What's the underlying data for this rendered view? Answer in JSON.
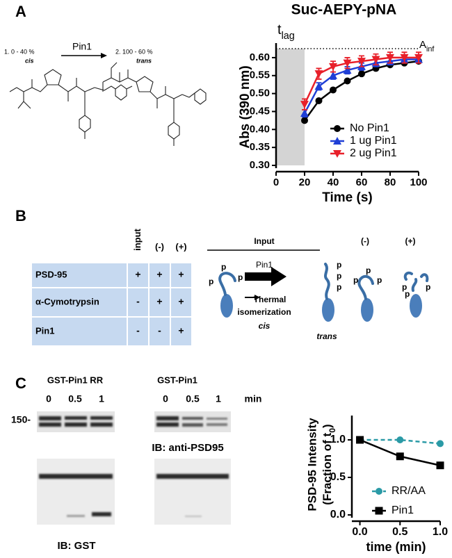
{
  "panel_labels": [
    "A",
    "B",
    "C"
  ],
  "scheme": {
    "start_label": "1.  0 - 40 %",
    "start_form": "cis",
    "enzyme": "Pin1",
    "end_label": "2.  100 - 60 %",
    "end_form": "trans"
  },
  "chart_data": [
    {
      "type": "line",
      "title": "Suc-AEPY-pNA",
      "x_label": "Time (s)",
      "y_label": "Abs (390 nm)",
      "lag_label": {
        "base": "t",
        "sub": "lag"
      },
      "asymptote_label": {
        "base": "A",
        "sub": "inf"
      },
      "lag_span": [
        0,
        20
      ],
      "asymptote": 0.625,
      "xlim": [
        0,
        100
      ],
      "ylim": [
        0.3,
        0.625
      ],
      "xticks": [
        0,
        20,
        40,
        60,
        80,
        100
      ],
      "yticks": [
        {
          "value": 0.3,
          "label": "0.30"
        },
        0.35,
        {
          "value": 0.4,
          "label": "0.40"
        },
        0.45,
        {
          "value": 0.5,
          "label": "0.50"
        },
        0.55,
        {
          "value": 0.6,
          "label": "0.60"
        }
      ],
      "legend": "lower right",
      "x": [
        20,
        30,
        40,
        50,
        60,
        70,
        80,
        90,
        100
      ],
      "series": [
        {
          "name": "No Pin1",
          "color": "#000000",
          "marker": "circle",
          "values": [
            0.425,
            0.48,
            0.51,
            0.535,
            0.555,
            0.57,
            0.58,
            0.585,
            0.59
          ]
        },
        {
          "name": "1 ug Pin1",
          "color": "#1f3fd6",
          "marker": "triangle",
          "values": [
            0.445,
            0.52,
            0.55,
            0.565,
            0.575,
            0.585,
            0.59,
            0.595,
            0.595
          ],
          "errors": [
            0.01,
            0.01,
            0.01,
            0.01,
            0.01,
            0.01,
            0.01,
            0.01,
            0.01
          ]
        },
        {
          "name": "2 ug Pin1",
          "color": "#e8202a",
          "marker": "triangle-down",
          "values": [
            0.47,
            0.555,
            0.575,
            0.585,
            0.59,
            0.595,
            0.6,
            0.6,
            0.6
          ],
          "errors": [
            0.015,
            0.015,
            0.015,
            0.015,
            0.015,
            0.015,
            0.015,
            0.015,
            0.015
          ]
        }
      ]
    },
    {
      "type": "line",
      "x_label": "time (min)",
      "y_label": {
        "line1": "PSD-95 Intensity",
        "line2": "(Fraction of t",
        "sub": "0",
        "end": ")"
      },
      "xlim": [
        -0.1,
        1.0
      ],
      "ylim": [
        0,
        1.25
      ],
      "xticks": [
        {
          "value": 0,
          "label": "0.0"
        },
        0.5,
        {
          "value": 1,
          "label": "1.0"
        }
      ],
      "yticks": [
        {
          "value": 0,
          "label": "0.0"
        },
        0.5,
        {
          "value": 1,
          "label": "1.0"
        }
      ],
      "legend": "lower right",
      "x": [
        0,
        0.5,
        1
      ],
      "series": [
        {
          "name": "RR/AA",
          "color": "#2a9aa6",
          "marker": "circle",
          "dashed": true,
          "values": [
            1.0,
            1.0,
            0.95
          ]
        },
        {
          "name": "Pin1",
          "color": "#000000",
          "marker": "square",
          "values": [
            1.0,
            0.78,
            0.66
          ]
        }
      ]
    }
  ],
  "table": {
    "columns": [
      "input",
      "(-)",
      "(+)"
    ],
    "rows": [
      {
        "label": "PSD-95",
        "cells": [
          "+",
          "+",
          "+"
        ]
      },
      {
        "label": "α-Cymotrypsin",
        "cells": [
          "-",
          "+",
          "+"
        ]
      },
      {
        "label": "Pin1",
        "cells": [
          "-",
          "-",
          "+"
        ]
      }
    ]
  },
  "diagram": {
    "input": "Input",
    "minus": "(-)",
    "plus": "(+)",
    "enzyme": "Pin1",
    "thermal": "Thermal",
    "isomerization": "isomerization",
    "cis": "cis",
    "trans": "trans",
    "phospho": "p"
  },
  "blots": {
    "left_title": "GST-Pin1 RR",
    "right_title": "GST-Pin1",
    "lanes": [
      "0",
      "0.5",
      "1"
    ],
    "time_unit": "min",
    "marker": "150-",
    "top_label": "IB: anti-PSD95",
    "bottom_label": "IB: GST"
  }
}
